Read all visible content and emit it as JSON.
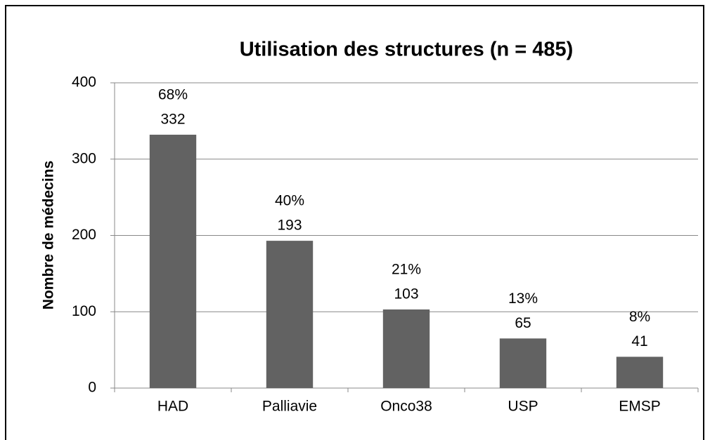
{
  "chart_data": {
    "type": "bar",
    "title": "Utilisation des structures (n = 485)",
    "y_label": "Nombre de médecins",
    "categories": [
      "HAD",
      "Palliavie",
      "Onco38",
      "USP",
      "EMSP"
    ],
    "values": [
      332,
      193,
      103,
      65,
      41
    ],
    "percent_labels": [
      "68%",
      "40%",
      "21%",
      "13%",
      "8%"
    ],
    "color": "#626262",
    "ylim": [
      0,
      400
    ],
    "yticks": [
      0,
      100,
      200,
      300,
      400
    ],
    "grid": true
  }
}
